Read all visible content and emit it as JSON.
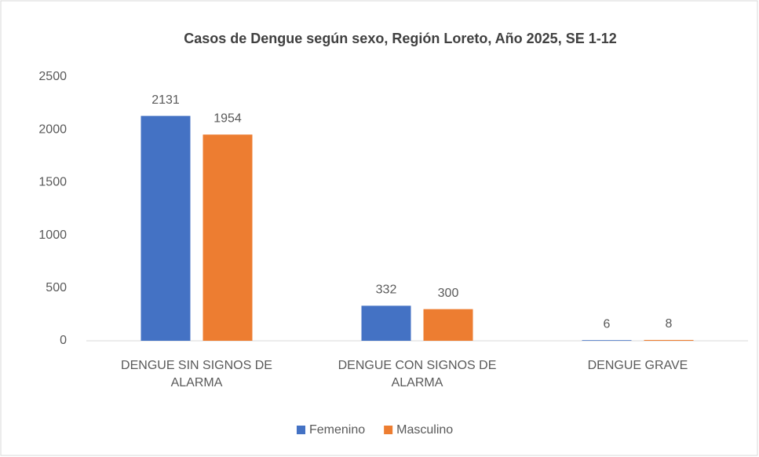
{
  "chart_data": {
    "type": "bar",
    "title": "Casos de Dengue según sexo, Región Loreto, Año 2025, SE 1-12",
    "categories": [
      "DENGUE SIN SIGNOS DE ALARMA",
      "DENGUE CON SIGNOS DE ALARMA",
      "DENGUE GRAVE"
    ],
    "series": [
      {
        "name": "Femenino",
        "color": "#4472c4",
        "values": [
          2131,
          332,
          6
        ]
      },
      {
        "name": "Masculino",
        "color": "#ed7d31",
        "values": [
          1954,
          300,
          8
        ]
      }
    ],
    "ylim": [
      0,
      2500
    ],
    "yticks": [
      0,
      500,
      1000,
      1500,
      2000,
      2500
    ],
    "grid": false,
    "legend": "bottom"
  }
}
